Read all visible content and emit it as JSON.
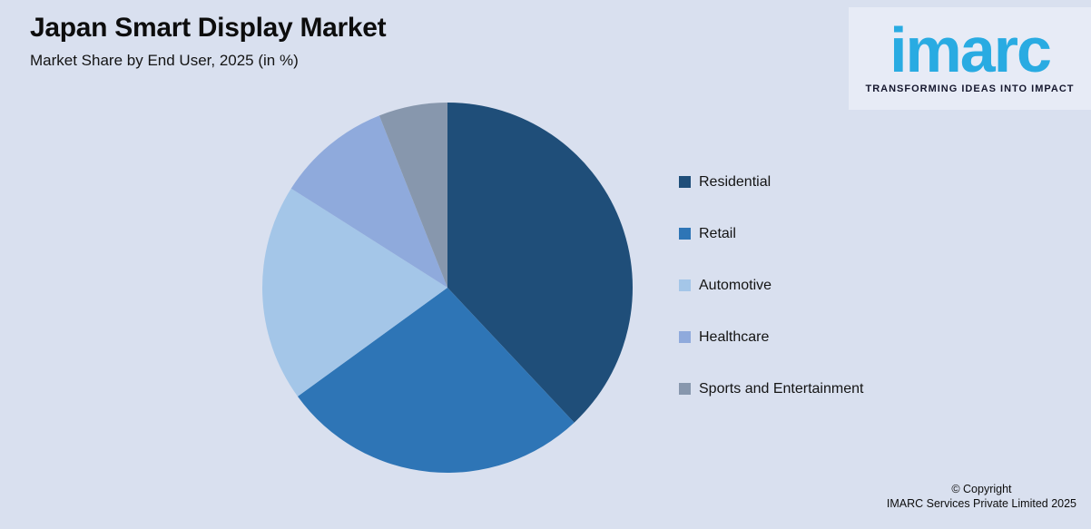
{
  "header": {
    "title": "Japan Smart Display Market",
    "subtitle": "Market Share by End User, 2025 (in %)"
  },
  "logo": {
    "brand": "imarc",
    "tagline": "TRANSFORMING IDEAS INTO IMPACT",
    "brand_color": "#29abe2"
  },
  "chart_data": {
    "type": "pie",
    "title": "Japan Smart Display Market — Market Share by End User, 2025 (in %)",
    "categories": [
      "Residential",
      "Retail",
      "Automotive",
      "Healthcare",
      "Sports and Entertainment"
    ],
    "values": [
      38,
      27,
      19,
      10,
      6
    ],
    "colors": [
      "#1f4e79",
      "#2e75b6",
      "#a4c6e8",
      "#8faadc",
      "#8797ad"
    ],
    "start_angle_deg": 0,
    "direction": "clockwise",
    "legend_position": "right",
    "data_labels": false
  },
  "footer": {
    "line1": "© Copyright",
    "line2": "IMARC Services Private Limited 2025"
  },
  "theme": {
    "background": "#d9e0ef",
    "logo_panel_background": "#e7ebf6",
    "text_color": "#0d0d0d"
  }
}
